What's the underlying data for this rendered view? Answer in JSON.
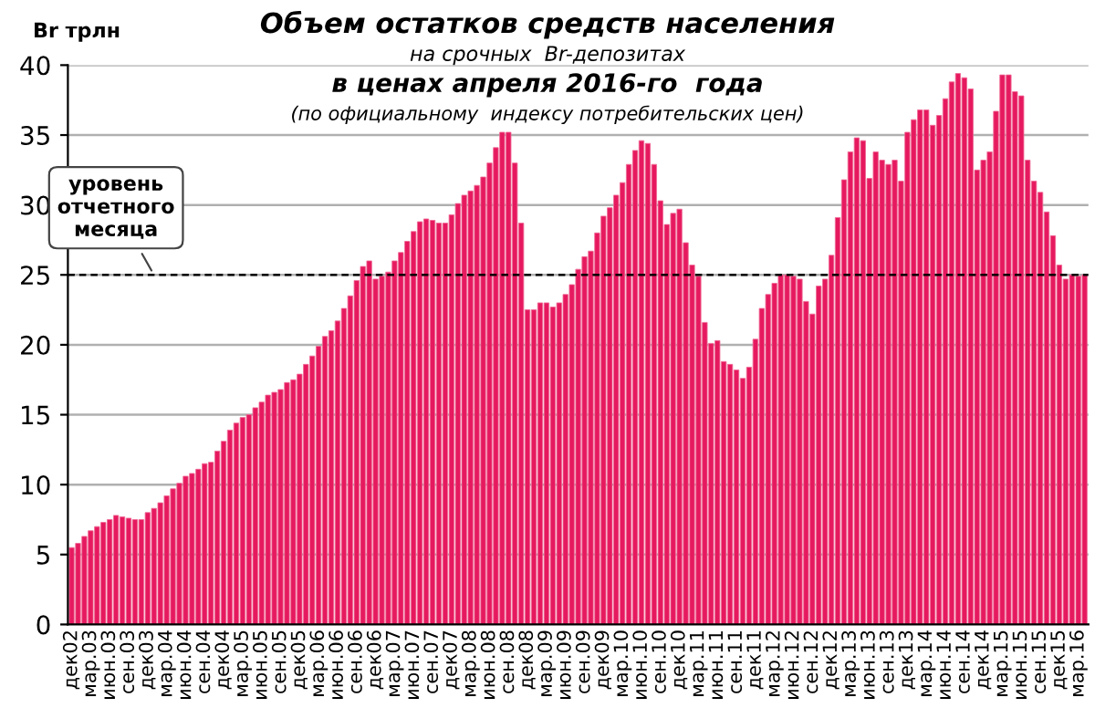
{
  "chart_data": {
    "type": "bar",
    "title": "Объем остатков средств населения",
    "subtitle": "на срочных  Br-депозитах\nв ценах апреля 2016-го  года\n(по официальному  индексу потребительских цен)",
    "ylabel": "Br трлн",
    "categories": [
      "дек02",
      null,
      null,
      "мар.03",
      null,
      null,
      "июн.03",
      null,
      null,
      "сен.03",
      null,
      null,
      "дек03",
      null,
      null,
      "мар.04",
      null,
      null,
      "июн.04",
      null,
      null,
      "сен.04",
      null,
      null,
      "дек04",
      null,
      null,
      "мар.05",
      null,
      null,
      "июн.05",
      null,
      null,
      "сен.05",
      null,
      null,
      "дек05",
      null,
      null,
      "мар.06",
      null,
      null,
      "июн.06",
      null,
      null,
      "сен.06",
      null,
      null,
      "дек06",
      null,
      null,
      "мар.07",
      null,
      null,
      "июн.07",
      null,
      null,
      "сен.07",
      null,
      null,
      "дек07",
      null,
      null,
      "мар.08",
      null,
      null,
      "июн.08",
      null,
      null,
      "сен.08",
      null,
      null,
      "дек08",
      null,
      null,
      "мар.09",
      null,
      null,
      "июн.09",
      null,
      null,
      "сен.09",
      null,
      null,
      "дек09",
      null,
      null,
      "мар.10",
      null,
      null,
      "июн.10",
      null,
      null,
      "сен.10",
      null,
      null,
      "дек10",
      null,
      null,
      "мар.11",
      null,
      null,
      "июн.11",
      null,
      null,
      "сен.11",
      null,
      null,
      "дек11",
      null,
      null,
      "мар.12",
      null,
      null,
      "июн.12",
      null,
      null,
      "сен.12",
      null,
      null,
      "дек12",
      null,
      null,
      "мар.13",
      null,
      null,
      "июн.13",
      null,
      null,
      "сен.13",
      null,
      null,
      "дек13",
      null,
      null,
      "мар.14",
      null,
      null,
      "июн.14",
      null,
      null,
      "сен.14",
      null,
      null,
      "дек14",
      null,
      null,
      "мар.15",
      null,
      null,
      "июн.15",
      null,
      null,
      "сен.15",
      null,
      null,
      "дек15",
      null,
      null,
      "мар.16",
      null
    ],
    "values": [
      5.5,
      5.8,
      6.3,
      6.7,
      7.0,
      7.3,
      7.5,
      7.8,
      7.7,
      7.6,
      7.5,
      7.5,
      8.0,
      8.3,
      8.7,
      9.2,
      9.7,
      10.1,
      10.6,
      10.8,
      11.1,
      11.5,
      11.6,
      12.4,
      13.1,
      13.9,
      14.4,
      14.8,
      15.0,
      15.5,
      15.9,
      16.4,
      16.6,
      16.8,
      17.3,
      17.5,
      17.9,
      18.6,
      19.2,
      19.9,
      20.6,
      21.0,
      21.7,
      22.6,
      23.5,
      24.6,
      25.6,
      26.0,
      24.7,
      24.9,
      25.2,
      26.0,
      26.6,
      27.4,
      28.1,
      28.8,
      29.0,
      28.9,
      28.7,
      28.7,
      29.3,
      30.1,
      30.7,
      31.0,
      31.4,
      32.0,
      33.0,
      34.1,
      35.2,
      35.2,
      33.0,
      28.7,
      22.5,
      22.5,
      23.0,
      23.0,
      22.7,
      23.0,
      23.6,
      24.3,
      25.4,
      26.3,
      26.7,
      28.0,
      29.2,
      29.8,
      30.7,
      31.6,
      32.9,
      33.9,
      34.6,
      34.4,
      32.9,
      30.3,
      28.6,
      29.4,
      29.7,
      27.3,
      25.7,
      24.9,
      21.6,
      20.1,
      20.3,
      18.8,
      18.6,
      18.2,
      17.6,
      18.4,
      20.4,
      22.6,
      23.6,
      24.4,
      25.0,
      25.0,
      24.9,
      24.7,
      23.1,
      22.2,
      24.2,
      24.7,
      26.4,
      29.1,
      31.8,
      33.8,
      34.8,
      34.6,
      31.9,
      33.8,
      33.2,
      32.9,
      33.2,
      31.7,
      35.2,
      36.1,
      36.8,
      36.8,
      35.7,
      36.4,
      37.6,
      38.8,
      39.4,
      39.1,
      38.3,
      32.5,
      33.2,
      33.8,
      36.7,
      39.3,
      39.3,
      38.1,
      37.8,
      33.2,
      31.7,
      30.9,
      29.5,
      27.8,
      25.7,
      24.7,
      25.0,
      24.9,
      25.0
    ],
    "color": "#e6195f",
    "ylim": [
      0,
      40
    ],
    "yticks": [
      0,
      5,
      10,
      15,
      20,
      25,
      30,
      35,
      40
    ],
    "grid": "y",
    "ref_lines": [
      {
        "axis": "y",
        "value": 25,
        "label": "уровень\nотчетного\nмесяца",
        "color": "#000000",
        "line_style": "dashed"
      }
    ]
  }
}
